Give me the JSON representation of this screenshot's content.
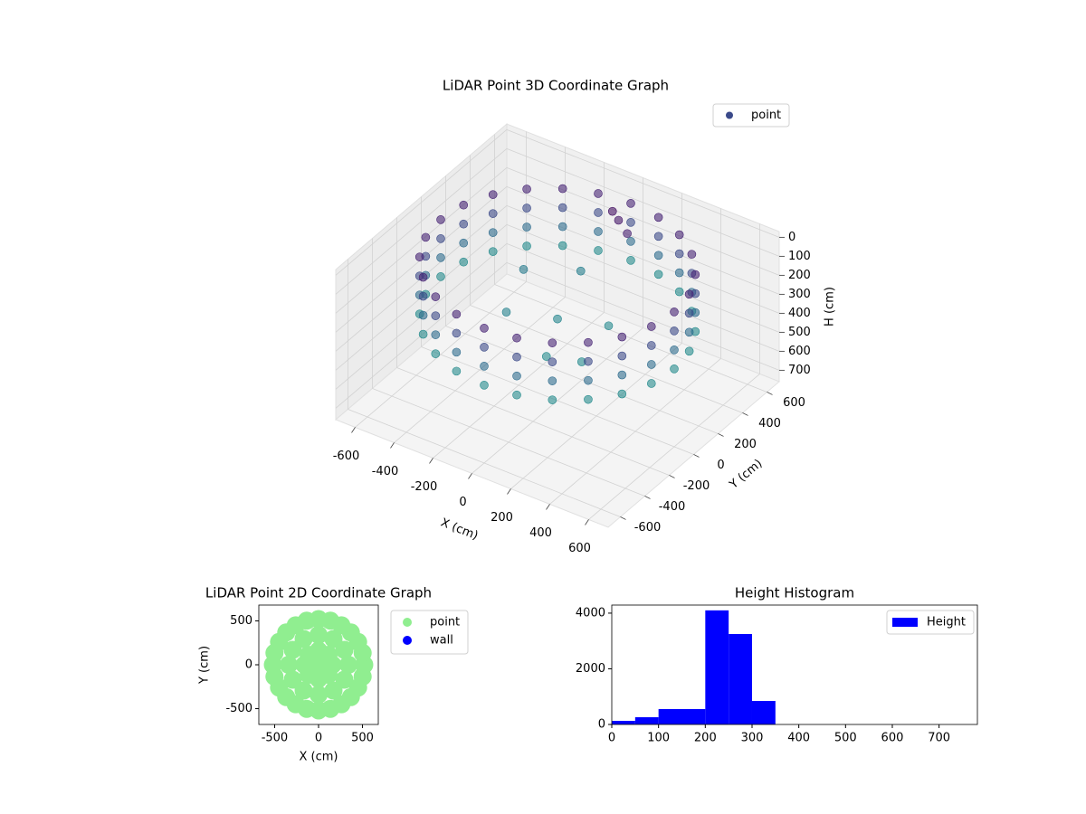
{
  "chart_data": [
    {
      "type": "scatter3d",
      "title": "LiDAR Point 3D Coordinate Graph",
      "x_label": "X (cm)",
      "y_label": "Y (cm)",
      "z_label": "H (cm)",
      "xlim": [
        -700,
        700
      ],
      "ylim": [
        -700,
        700
      ],
      "zlim": [
        -30,
        760
      ],
      "z_inverted": true,
      "xticks": [
        -600,
        -400,
        -200,
        0,
        200,
        400,
        600
      ],
      "yticks": [
        -600,
        -400,
        -200,
        0,
        200,
        400,
        600
      ],
      "zticks": [
        0,
        100,
        200,
        300,
        400,
        500,
        600,
        700
      ],
      "grid": true,
      "legend": "upper right",
      "cmap": "viridis",
      "series": [
        {
          "name": "point",
          "color": "#3b4a8a",
          "x": [
            600,
            580,
            520,
            424,
            300,
            155,
            0,
            -155,
            -300,
            -424,
            -520,
            -580,
            -600,
            -580,
            -520,
            -424,
            -300,
            -155,
            0,
            155,
            300,
            424,
            520,
            580,
            600,
            580,
            520,
            424,
            300,
            155,
            0,
            -155,
            -300,
            -424,
            -520,
            -580,
            -600,
            -580,
            -520,
            -424,
            -300,
            -155,
            0,
            155,
            300,
            424,
            520,
            580,
            600,
            580,
            520,
            424,
            300,
            155,
            0,
            -155,
            -300,
            -424,
            -520,
            -580,
            -600,
            -580,
            -520,
            -424,
            -300,
            -155,
            0,
            155,
            300,
            424,
            520,
            580,
            600,
            580,
            520,
            424,
            300,
            155,
            0,
            -155,
            -300,
            -424,
            -520,
            -580,
            -600,
            -580,
            -520,
            -424,
            -300,
            -155,
            0,
            155,
            300,
            424,
            520,
            580,
            0,
            200,
            -200,
            100,
            -300,
            250,
            -100,
            50,
            120,
            0
          ],
          "y": [
            0,
            155,
            300,
            424,
            520,
            580,
            600,
            580,
            520,
            424,
            300,
            155,
            0,
            -155,
            -300,
            -424,
            -520,
            -580,
            -600,
            -580,
            -520,
            -424,
            -300,
            -155,
            0,
            155,
            300,
            424,
            520,
            580,
            600,
            580,
            520,
            424,
            300,
            155,
            0,
            -155,
            -300,
            -424,
            -520,
            -580,
            -600,
            -580,
            -520,
            -424,
            -300,
            -155,
            0,
            155,
            300,
            424,
            520,
            580,
            600,
            580,
            520,
            424,
            300,
            155,
            0,
            -155,
            -300,
            -424,
            -520,
            -580,
            -600,
            -580,
            -520,
            -424,
            -300,
            -155,
            0,
            155,
            300,
            424,
            520,
            580,
            600,
            580,
            520,
            424,
            300,
            155,
            0,
            -155,
            -300,
            -424,
            -520,
            -580,
            -600,
            -580,
            -520,
            -424,
            -300,
            -155,
            0,
            100,
            -100,
            -250,
            200,
            -200,
            350,
            420,
            380,
            450
          ],
          "z": [
            50,
            50,
            50,
            50,
            50,
            50,
            50,
            50,
            50,
            50,
            50,
            50,
            50,
            50,
            50,
            50,
            50,
            50,
            50,
            50,
            50,
            50,
            50,
            50,
            150,
            150,
            150,
            150,
            150,
            150,
            150,
            150,
            150,
            150,
            150,
            150,
            150,
            150,
            150,
            150,
            150,
            150,
            150,
            150,
            150,
            150,
            150,
            150,
            250,
            250,
            250,
            250,
            250,
            250,
            250,
            250,
            250,
            250,
            250,
            250,
            250,
            250,
            250,
            250,
            250,
            250,
            250,
            250,
            250,
            250,
            250,
            250,
            350,
            350,
            350,
            350,
            350,
            350,
            350,
            350,
            350,
            350,
            350,
            350,
            350,
            350,
            350,
            350,
            350,
            350,
            350,
            350,
            350,
            350,
            350,
            350,
            330,
            340,
            320,
            350,
            300,
            345,
            310,
            20,
            40,
            10
          ]
        }
      ]
    },
    {
      "type": "scatter",
      "title": "LiDAR Point 2D Coordinate Graph",
      "x_label": "X (cm)",
      "y_label": "Y (cm)",
      "xlim": [
        -680,
        680
      ],
      "ylim": [
        -680,
        680
      ],
      "xticks": [
        -500,
        0,
        500
      ],
      "yticks": [
        -500,
        0,
        500
      ],
      "legend": "right",
      "series": [
        {
          "name": "point",
          "color": "#90ee90",
          "x": [
            520,
            502,
            450,
            368,
            260,
            135,
            0,
            -135,
            -260,
            -368,
            -450,
            -502,
            -520,
            -502,
            -450,
            -368,
            -260,
            -135,
            0,
            135,
            260,
            368,
            450,
            502,
            340,
            294,
            170,
            0,
            -170,
            -294,
            -340,
            -294,
            -170,
            0,
            170,
            294,
            160,
            113,
            0,
            -113,
            -160,
            -113,
            0,
            113,
            0
          ],
          "y": [
            0,
            135,
            260,
            368,
            450,
            502,
            520,
            502,
            450,
            368,
            260,
            135,
            0,
            -135,
            -260,
            -368,
            -450,
            -502,
            -520,
            -502,
            -450,
            -368,
            -260,
            -135,
            0,
            170,
            294,
            340,
            294,
            170,
            0,
            -170,
            -294,
            -340,
            -294,
            -170,
            0,
            113,
            160,
            113,
            0,
            -113,
            -160,
            -113,
            0
          ]
        },
        {
          "name": "wall",
          "color": "#0000ff",
          "x": [],
          "y": []
        }
      ]
    },
    {
      "type": "histogram",
      "title": "Height Histogram",
      "bins": [
        0,
        50,
        100,
        150,
        200,
        250,
        300,
        350,
        400,
        450,
        500,
        550,
        600,
        650,
        700,
        750
      ],
      "xlim": [
        0,
        782
      ],
      "ylim": [
        0,
        4290
      ],
      "xticks": [
        0,
        100,
        200,
        300,
        400,
        500,
        600,
        700
      ],
      "yticks": [
        0,
        2000,
        4000
      ],
      "legend": "upper right",
      "series": [
        {
          "name": "Height",
          "color": "#0000ff",
          "values": [
            130,
            260,
            553,
            553,
            4100,
            3250,
            845,
            0,
            0,
            0,
            0,
            0,
            0,
            0,
            0
          ]
        }
      ]
    }
  ]
}
